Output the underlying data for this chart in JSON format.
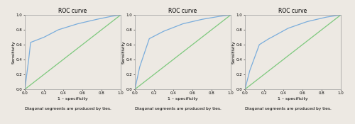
{
  "title": "ROC curve",
  "xlabel": "1 – specificity",
  "ylabel": "Sensitivity",
  "footnote": "Diagonal segments are produced by ties.",
  "roc_curves": [
    {
      "fpr": [
        0.0,
        0.04,
        0.06,
        0.1,
        0.2,
        0.35,
        0.55,
        0.75,
        0.9,
        1.0
      ],
      "tpr": [
        0.0,
        0.4,
        0.63,
        0.65,
        0.7,
        0.8,
        0.88,
        0.94,
        0.98,
        1.0
      ]
    },
    {
      "fpr": [
        0.0,
        0.05,
        0.15,
        0.18,
        0.3,
        0.5,
        0.7,
        0.88,
        1.0
      ],
      "tpr": [
        0.0,
        0.3,
        0.68,
        0.7,
        0.78,
        0.88,
        0.94,
        0.98,
        1.0
      ]
    },
    {
      "fpr": [
        0.0,
        0.05,
        0.15,
        0.25,
        0.28,
        0.45,
        0.65,
        0.85,
        1.0
      ],
      "tpr": [
        0.0,
        0.25,
        0.6,
        0.68,
        0.7,
        0.82,
        0.91,
        0.97,
        1.0
      ]
    }
  ],
  "roc_color": "#7aaddc",
  "diag_color": "#7dc97d",
  "bg_color": "#ede9e3",
  "plot_bg_color": "#ede9e3",
  "title_fontsize": 5.5,
  "label_fontsize": 4.5,
  "tick_fontsize": 4.0,
  "footnote_fontsize": 4.2,
  "roc_linewidth": 0.9,
  "diag_linewidth": 0.9
}
